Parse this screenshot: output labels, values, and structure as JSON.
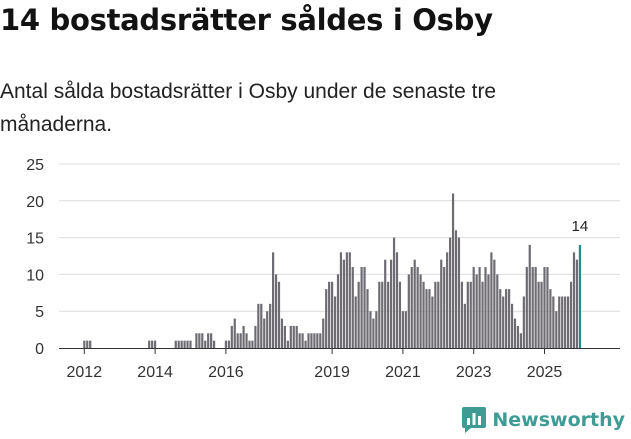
{
  "header": {
    "title": "14 bostadsrätter såldes i Osby",
    "subtitle": "Antal sålda bostadsrätter i Osby under de senaste tre månaderna."
  },
  "brand": {
    "name": "Newsworthy",
    "logo_icon": "newsworthy-logo-icon",
    "color": "#3e9c95"
  },
  "colors": {
    "bar": "#6e6c72",
    "highlight": "#1b8f8a",
    "grid": "#dcdcdc",
    "axis": "#333333"
  },
  "chart_data": {
    "type": "bar",
    "title": "14 bostadsrätter såldes i Osby",
    "xlabel": "",
    "ylabel": "",
    "ylim": [
      0,
      25
    ],
    "yticks": [
      0,
      5,
      10,
      15,
      20,
      25
    ],
    "xticks": [
      {
        "label": "2012",
        "index": 0
      },
      {
        "label": "2014",
        "index": 24
      },
      {
        "label": "2016",
        "index": 48
      },
      {
        "label": "2019",
        "index": 84
      },
      {
        "label": "2021",
        "index": 108
      },
      {
        "label": "2023",
        "index": 132
      },
      {
        "label": "2025",
        "index": 156
      }
    ],
    "start": "2012-01",
    "unit": "month",
    "series": [
      {
        "name": "Sålda bostadsrätter",
        "values": [
          1,
          1,
          1,
          0,
          0,
          0,
          0,
          0,
          0,
          0,
          0,
          0,
          0,
          0,
          0,
          0,
          0,
          0,
          0,
          0,
          0,
          0,
          1,
          1,
          1,
          0,
          0,
          0,
          0,
          0,
          0,
          1,
          1,
          1,
          1,
          1,
          1,
          0,
          2,
          2,
          2,
          1,
          2,
          2,
          1,
          0,
          0,
          0,
          1,
          1,
          3,
          4,
          2,
          2,
          3,
          2,
          1,
          1,
          3,
          6,
          6,
          4,
          5,
          6,
          13,
          10,
          9,
          4,
          3,
          1,
          3,
          3,
          3,
          2,
          2,
          1,
          2,
          2,
          2,
          2,
          2,
          4,
          8,
          9,
          9,
          7,
          10,
          13,
          12,
          13,
          13,
          11,
          7,
          9,
          11,
          11,
          8,
          5,
          4,
          5,
          9,
          9,
          12,
          9,
          12,
          15,
          13,
          9,
          5,
          5,
          10,
          11,
          12,
          11,
          10,
          9,
          8,
          8,
          7,
          9,
          9,
          12,
          11,
          13,
          15,
          21,
          16,
          15,
          9,
          6,
          9,
          9,
          11,
          10,
          11,
          9,
          11,
          10,
          13,
          12,
          10,
          8,
          7,
          8,
          8,
          6,
          4,
          3,
          2,
          7,
          11,
          14,
          11,
          11,
          9,
          9,
          11,
          11,
          8,
          7,
          5,
          7,
          7,
          7,
          7,
          9,
          13,
          12,
          14
        ]
      }
    ],
    "highlight": {
      "index": 168,
      "label": "14"
    }
  }
}
